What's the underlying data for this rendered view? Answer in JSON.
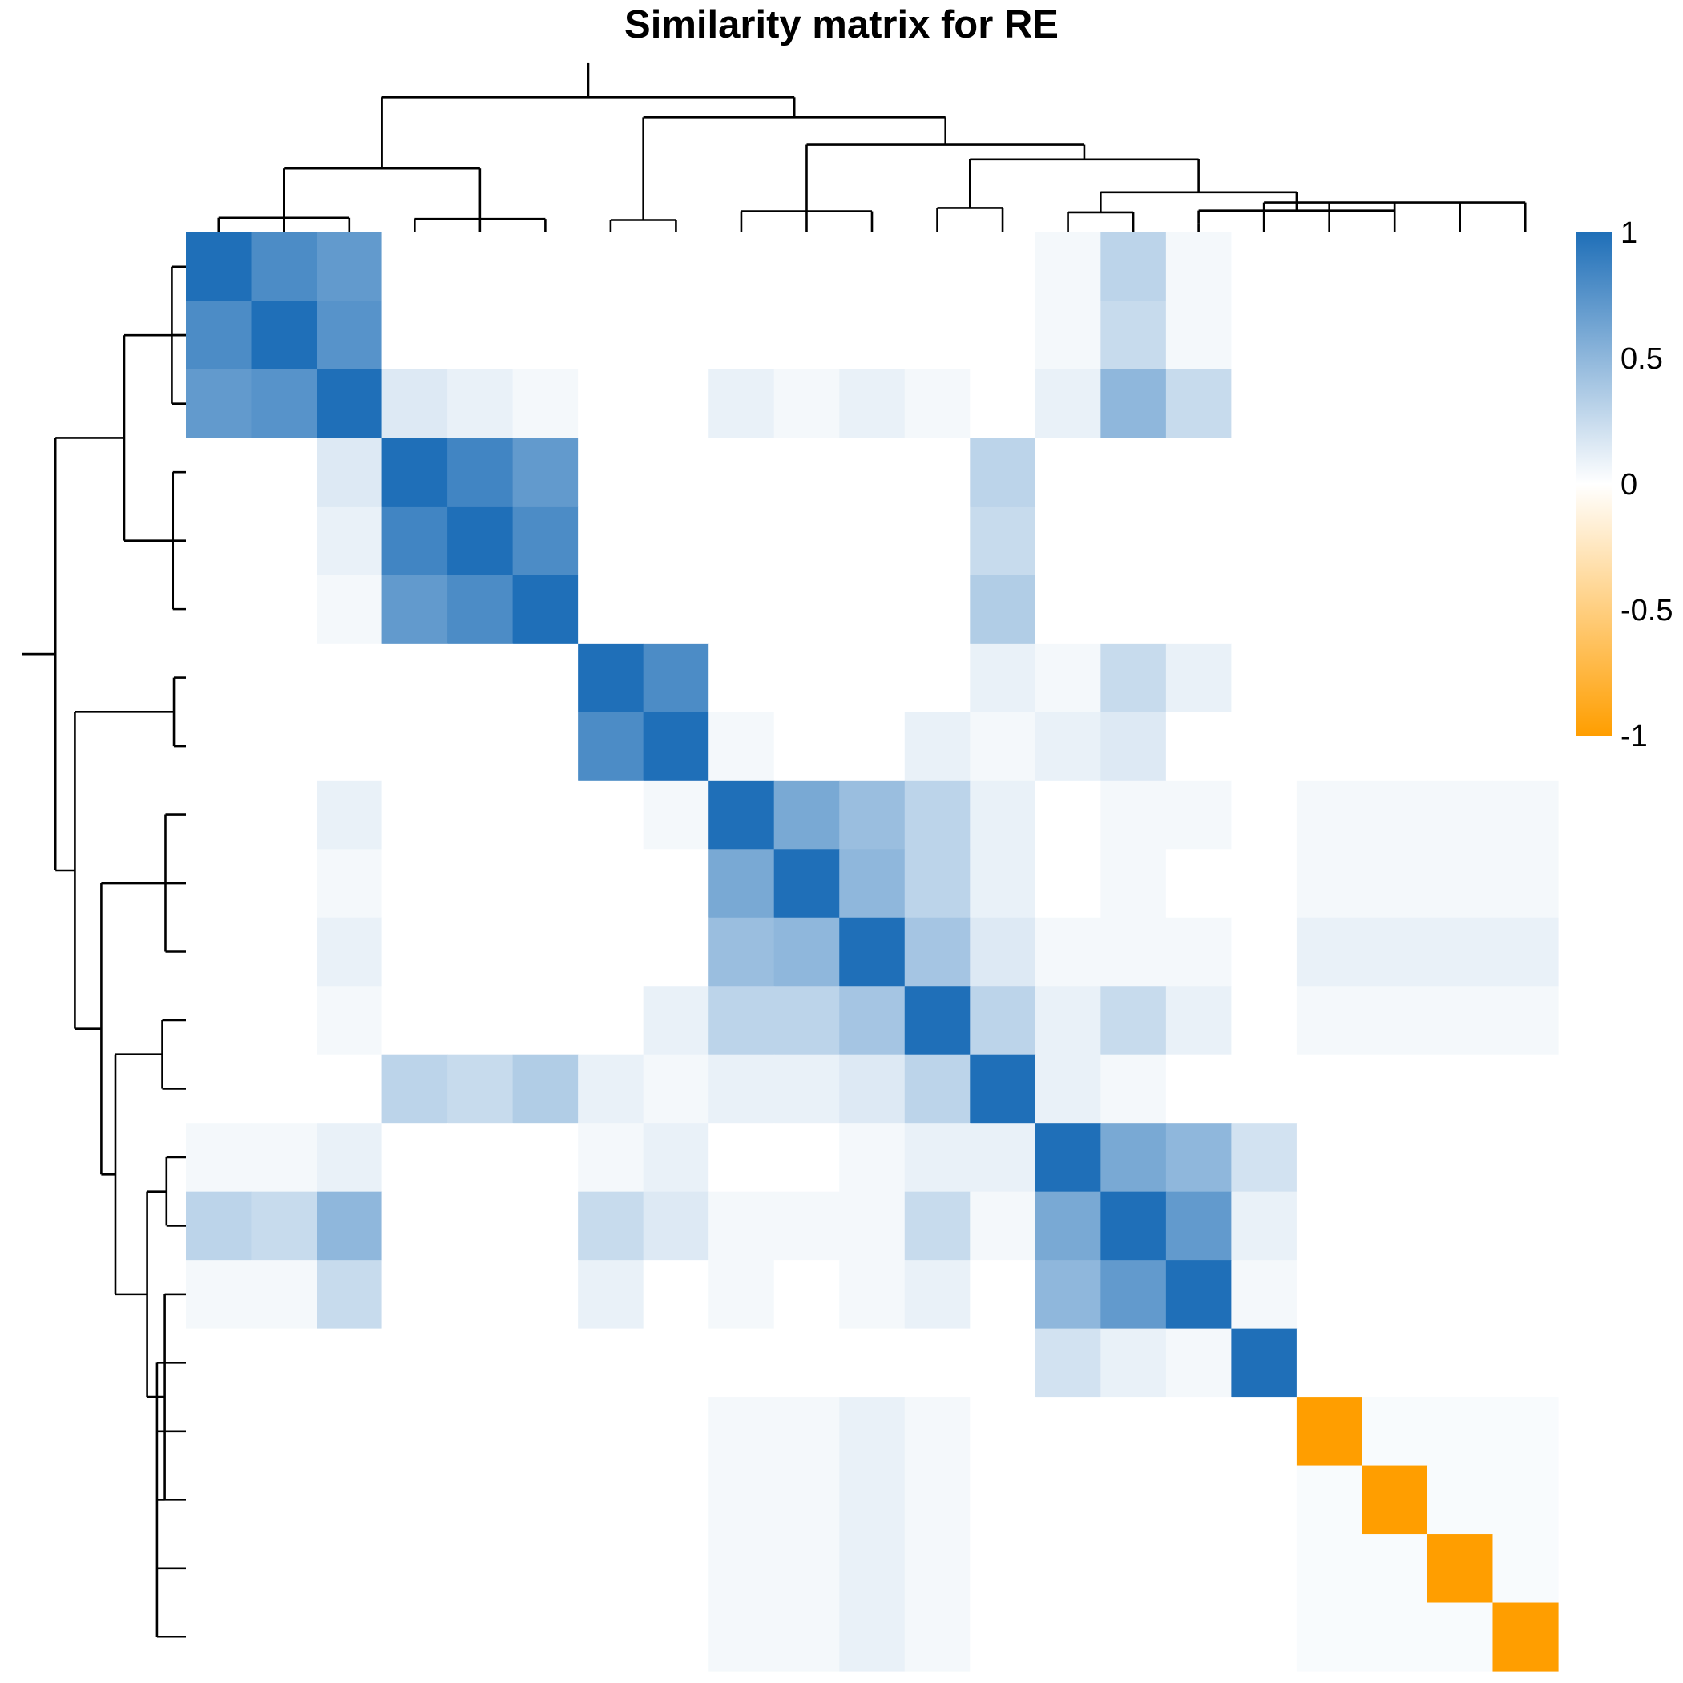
{
  "chart_data": {
    "type": "heatmap",
    "title": "Similarity matrix for RE",
    "xlabel": "",
    "ylabel": "",
    "row_labels_shown": false,
    "column_labels_shown": false,
    "dendrograms": [
      "top",
      "left"
    ],
    "color_scale": {
      "min": -1,
      "max": 1,
      "stops": [
        {
          "value": -1,
          "color": "#FF9E00"
        },
        {
          "value": 0,
          "color": "#FFFFFF"
        },
        {
          "value": 1,
          "color": "#1F6FB8"
        }
      ],
      "tick_labels": [
        "1",
        "0.5",
        "0",
        "-0.5",
        "-1"
      ],
      "tick_values": [
        1,
        0.5,
        0,
        -0.5,
        -1
      ]
    },
    "n_items": 21,
    "clusters": [
      {
        "id": "A",
        "size": 3,
        "within_similarity": 0.75
      },
      {
        "id": "B",
        "size": 3,
        "within_similarity": 0.8
      },
      {
        "id": "C",
        "size": 2,
        "within_similarity": 0.85
      },
      {
        "id": "D",
        "size": 3,
        "within_similarity": 0.45
      },
      {
        "id": "E",
        "size": 2,
        "within_similarity": 0.3
      },
      {
        "id": "F",
        "size": 2,
        "within_similarity": 0.5
      },
      {
        "id": "G",
        "size": 1,
        "within_similarity": 1
      },
      {
        "id": "H",
        "size": 5,
        "within_similarity": 0.05
      }
    ],
    "matrix": [
      [
        1,
        0.8,
        0.7,
        0,
        0,
        0,
        0,
        0,
        0,
        0,
        0,
        0,
        0,
        0.05,
        0.3,
        0.05,
        0,
        0,
        0,
        0,
        0
      ],
      [
        0.8,
        1,
        0.75,
        0,
        0,
        0,
        0,
        0,
        0,
        0,
        0,
        0,
        0,
        0.05,
        0.25,
        0.05,
        0,
        0,
        0,
        0,
        0
      ],
      [
        0.7,
        0.75,
        1,
        0.15,
        0.1,
        0.05,
        0,
        0,
        0.1,
        0.05,
        0.1,
        0.05,
        0,
        0.1,
        0.5,
        0.25,
        0,
        0,
        0,
        0,
        0
      ],
      [
        0,
        0,
        0.15,
        1,
        0.85,
        0.7,
        0,
        0,
        0,
        0,
        0,
        0,
        0.3,
        0,
        0,
        0,
        0,
        0,
        0,
        0,
        0
      ],
      [
        0,
        0,
        0.1,
        0.85,
        1,
        0.8,
        0,
        0,
        0,
        0,
        0,
        0,
        0.25,
        0,
        0,
        0,
        0,
        0,
        0,
        0,
        0
      ],
      [
        0,
        0,
        0.05,
        0.7,
        0.8,
        1,
        0,
        0,
        0,
        0,
        0,
        0,
        0.35,
        0,
        0,
        0,
        0,
        0,
        0,
        0,
        0
      ],
      [
        0,
        0,
        0,
        0,
        0,
        0,
        1,
        0.8,
        0,
        0,
        0,
        0,
        0.1,
        0.05,
        0.25,
        0.1,
        0,
        0,
        0,
        0,
        0
      ],
      [
        0,
        0,
        0,
        0,
        0,
        0,
        0.8,
        1,
        0.05,
        0,
        0,
        0.1,
        0.05,
        0.1,
        0.15,
        0,
        0,
        0,
        0,
        0,
        0
      ],
      [
        0,
        0,
        0.1,
        0,
        0,
        0,
        0,
        0.05,
        1,
        0.6,
        0.45,
        0.3,
        0.1,
        0,
        0.05,
        0.05,
        0,
        0.05,
        0.05,
        0.05,
        0.05
      ],
      [
        0,
        0,
        0.05,
        0,
        0,
        0,
        0,
        0,
        0.6,
        1,
        0.5,
        0.3,
        0.1,
        0,
        0.05,
        0,
        0,
        0.05,
        0.05,
        0.05,
        0.05
      ],
      [
        0,
        0,
        0.1,
        0,
        0,
        0,
        0,
        0,
        0.45,
        0.5,
        1,
        0.4,
        0.15,
        0.05,
        0.05,
        0.05,
        0,
        0.1,
        0.1,
        0.1,
        0.1
      ],
      [
        0,
        0,
        0.05,
        0,
        0,
        0,
        0,
        0.1,
        0.3,
        0.3,
        0.4,
        1,
        0.3,
        0.1,
        0.25,
        0.1,
        0,
        0.05,
        0.05,
        0.05,
        0.05
      ],
      [
        0,
        0,
        0,
        0.3,
        0.25,
        0.35,
        0.1,
        0.05,
        0.1,
        0.1,
        0.15,
        0.3,
        1,
        0.1,
        0.05,
        0,
        0,
        0,
        0,
        0,
        0
      ],
      [
        0.05,
        0.05,
        0.1,
        0,
        0,
        0,
        0.05,
        0.1,
        0,
        0,
        0.05,
        0.1,
        0.1,
        1,
        0.6,
        0.5,
        0.2,
        0,
        0,
        0,
        0
      ],
      [
        0.3,
        0.25,
        0.5,
        0,
        0,
        0,
        0.25,
        0.15,
        0.05,
        0.05,
        0.05,
        0.25,
        0.05,
        0.6,
        1,
        0.7,
        0.1,
        0,
        0,
        0,
        0
      ],
      [
        0.05,
        0.05,
        0.25,
        0,
        0,
        0,
        0.1,
        0,
        0.05,
        0,
        0.05,
        0.1,
        0,
        0.5,
        0.7,
        1,
        0.05,
        0,
        0,
        0,
        0
      ],
      [
        0,
        0,
        0,
        0,
        0,
        0,
        0,
        0,
        0,
        0,
        0,
        0,
        0,
        0.2,
        0.1,
        0.05,
        1,
        0,
        0,
        0,
        0
      ],
      [
        0,
        0,
        0,
        0,
        0,
        0,
        0,
        0,
        0.05,
        0.05,
        0.1,
        0.05,
        0,
        0,
        0,
        0,
        0,
        -1,
        0.03,
        0.03,
        0.03
      ],
      [
        0,
        0,
        0,
        0,
        0,
        0,
        0,
        0,
        0.05,
        0.05,
        0.1,
        0.05,
        0,
        0,
        0,
        0,
        0,
        0.03,
        -1,
        0.03,
        0.03
      ],
      [
        0,
        0,
        0,
        0,
        0,
        0,
        0,
        0,
        0.05,
        0.05,
        0.1,
        0.05,
        0,
        0,
        0,
        0,
        0,
        0.03,
        0.03,
        -1,
        0.03
      ],
      [
        0,
        0,
        0,
        0,
        0,
        0,
        0,
        0,
        0.05,
        0.05,
        0.1,
        0.05,
        0,
        0,
        0,
        0,
        0,
        0.03,
        0.03,
        0.03,
        -1
      ]
    ]
  }
}
